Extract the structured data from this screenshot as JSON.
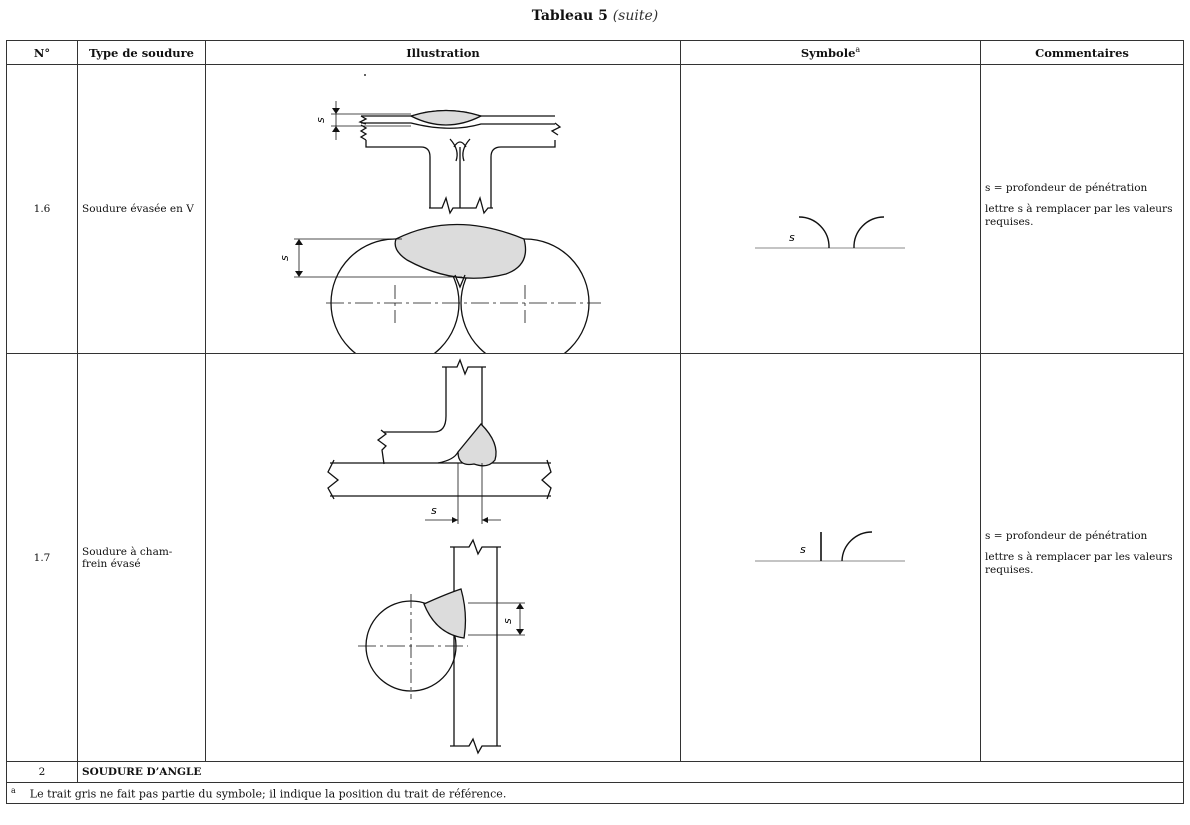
{
  "caption": {
    "title": "Tableau 5",
    "suffix": "(suite)"
  },
  "headers": {
    "num": "N°",
    "type": "Type de soudure",
    "illustration": "Illustration",
    "symbol": "Symbole",
    "symbol_note_mark": "a",
    "comments": "Commentaires"
  },
  "rows": [
    {
      "num": "1.6",
      "type": "Soudure évasée en V",
      "comment_1": "s = profondeur de pénétration",
      "comment_2": "lettre s à remplacer par les valeurs requises."
    },
    {
      "num": "1.7",
      "type": "Soudure à cham-\nfrein évasé",
      "comment_1": "s = profondeur de pénétration",
      "comment_2": "lettre s à remplacer par les valeurs requises."
    }
  ],
  "section": {
    "num": "2",
    "title": "SOUDURE D’ANGLE"
  },
  "footnote": {
    "mark": "a",
    "text": "Le trait gris ne fait pas partie du symbole; il indique la position du trait de référence."
  },
  "dim_label": "s"
}
